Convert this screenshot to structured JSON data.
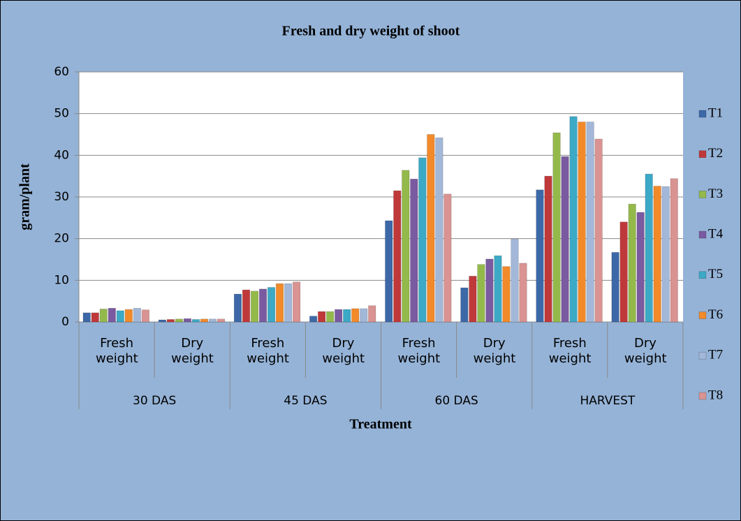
{
  "chart_data": {
    "type": "bar",
    "title": "Fresh and dry weight of shoot",
    "ylabel": "gram/plant",
    "xlabel": "Treatment",
    "categories": [
      "Fresh weight",
      "Dry weight",
      "Fresh weight",
      "Dry weight",
      "Fresh weight",
      "Dry weight",
      "Fresh weight",
      "Dry weight"
    ],
    "groups": [
      "30 DAS",
      "45 DAS",
      "60 DAS",
      "HARVEST"
    ],
    "series": [
      {
        "name": "T1",
        "color": "#3d68a8",
        "values": [
          2.2,
          0.5,
          6.7,
          1.4,
          24.3,
          8.2,
          31.7,
          16.7
        ]
      },
      {
        "name": "T2",
        "color": "#c0393a",
        "values": [
          2.2,
          0.6,
          7.7,
          2.5,
          31.5,
          11,
          35,
          24
        ]
      },
      {
        "name": "T3",
        "color": "#94b94b",
        "values": [
          3.1,
          0.7,
          7.4,
          2.5,
          36.4,
          13.8,
          45.4,
          28.3
        ]
      },
      {
        "name": "T4",
        "color": "#7a5aa0",
        "values": [
          3.3,
          0.8,
          7.9,
          3,
          34.3,
          15.1,
          39.7,
          26.3
        ]
      },
      {
        "name": "T5",
        "color": "#3ca9c6",
        "values": [
          2.7,
          0.6,
          8.3,
          3,
          39.4,
          15.9,
          49.3,
          35.5
        ]
      },
      {
        "name": "T6",
        "color": "#f28a2a",
        "values": [
          3,
          0.7,
          9.2,
          3.2,
          45,
          13.3,
          48,
          32.6
        ]
      },
      {
        "name": "T7",
        "color": "#a3b7d9",
        "values": [
          3.3,
          0.7,
          9.2,
          3.2,
          44.2,
          19.9,
          48,
          32.5
        ]
      },
      {
        "name": "T8",
        "color": "#d99392",
        "values": [
          2.9,
          0.7,
          9.6,
          3.9,
          30.7,
          14.1,
          43.9,
          34.4
        ]
      }
    ],
    "ylim": [
      0,
      60
    ],
    "yticks": [
      0,
      10,
      20,
      30,
      40,
      50,
      60
    ],
    "grid": true,
    "legend": "right"
  }
}
